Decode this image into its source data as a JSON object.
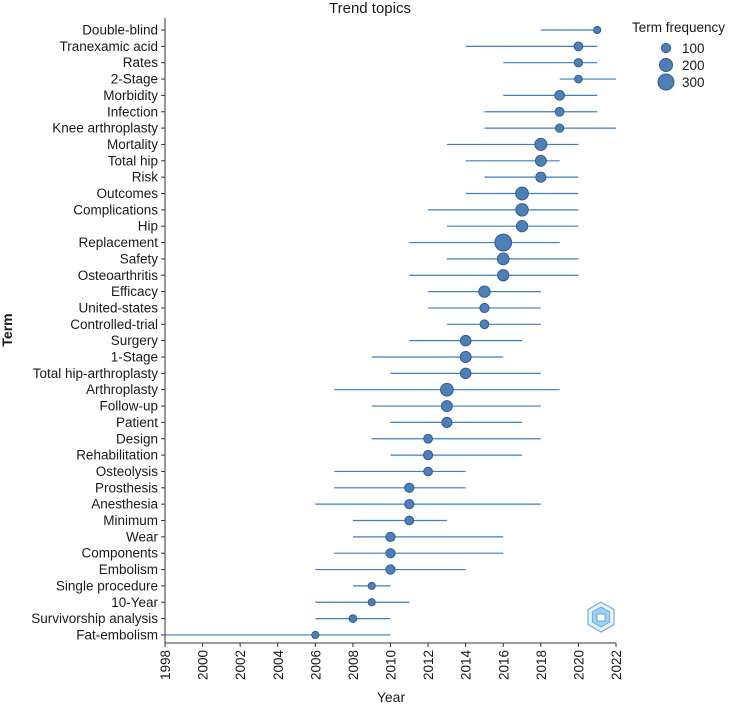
{
  "chart_data": {
    "type": "scatter",
    "title": "Trend topics",
    "xlabel": "Year",
    "ylabel": "Term",
    "xlim": [
      1998,
      2022
    ],
    "xticks": [
      "1998",
      "2000",
      "2002",
      "2004",
      "2006",
      "2008",
      "2010",
      "2012",
      "2014",
      "2016",
      "2018",
      "2020",
      "2022"
    ],
    "legend": {
      "title": "Term frequency",
      "position": "top-right",
      "entries": [
        {
          "label": "100",
          "value": 100
        },
        {
          "label": "200",
          "value": 200
        },
        {
          "label": "300",
          "value": 300
        }
      ]
    },
    "terms": [
      {
        "term": "Double-blind",
        "median": 2021,
        "start": 2018,
        "end": 2021,
        "freq": 60
      },
      {
        "term": "Tranexamic acid",
        "median": 2020,
        "start": 2014,
        "end": 2021,
        "freq": 90
      },
      {
        "term": "Rates",
        "median": 2020,
        "start": 2016,
        "end": 2021,
        "freq": 80
      },
      {
        "term": "2-Stage",
        "median": 2020,
        "start": 2019,
        "end": 2022,
        "freq": 70
      },
      {
        "term": "Morbidity",
        "median": 2019,
        "start": 2016,
        "end": 2021,
        "freq": 110
      },
      {
        "term": "Infection",
        "median": 2019,
        "start": 2015,
        "end": 2021,
        "freq": 90
      },
      {
        "term": "Knee arthroplasty",
        "median": 2019,
        "start": 2015,
        "end": 2022,
        "freq": 80
      },
      {
        "term": "Mortality",
        "median": 2018,
        "start": 2013,
        "end": 2020,
        "freq": 170
      },
      {
        "term": "Total hip",
        "median": 2018,
        "start": 2014,
        "end": 2019,
        "freq": 140
      },
      {
        "term": "Risk",
        "median": 2018,
        "start": 2015,
        "end": 2020,
        "freq": 120
      },
      {
        "term": "Outcomes",
        "median": 2017,
        "start": 2014,
        "end": 2020,
        "freq": 190
      },
      {
        "term": "Complications",
        "median": 2017,
        "start": 2012,
        "end": 2020,
        "freq": 180
      },
      {
        "term": "Hip",
        "median": 2017,
        "start": 2013,
        "end": 2020,
        "freq": 150
      },
      {
        "term": "Replacement",
        "median": 2016,
        "start": 2011,
        "end": 2019,
        "freq": 330
      },
      {
        "term": "Safety",
        "median": 2016,
        "start": 2013,
        "end": 2020,
        "freq": 160
      },
      {
        "term": "Osteoarthritis",
        "median": 2016,
        "start": 2011,
        "end": 2020,
        "freq": 150
      },
      {
        "term": "Efficacy",
        "median": 2015,
        "start": 2012,
        "end": 2018,
        "freq": 150
      },
      {
        "term": "United-states",
        "median": 2015,
        "start": 2012,
        "end": 2018,
        "freq": 100
      },
      {
        "term": "Controlled-trial",
        "median": 2015,
        "start": 2013,
        "end": 2018,
        "freq": 90
      },
      {
        "term": "Surgery",
        "median": 2014,
        "start": 2011,
        "end": 2017,
        "freq": 130
      },
      {
        "term": "1-Stage",
        "median": 2014,
        "start": 2009,
        "end": 2016,
        "freq": 140
      },
      {
        "term": "Total hip-arthroplasty",
        "median": 2014,
        "start": 2010,
        "end": 2018,
        "freq": 130
      },
      {
        "term": "Arthroplasty",
        "median": 2013,
        "start": 2007,
        "end": 2019,
        "freq": 190
      },
      {
        "term": "Follow-up",
        "median": 2013,
        "start": 2009,
        "end": 2018,
        "freq": 140
      },
      {
        "term": "Patient",
        "median": 2013,
        "start": 2010,
        "end": 2017,
        "freq": 120
      },
      {
        "term": "Design",
        "median": 2012,
        "start": 2009,
        "end": 2018,
        "freq": 90
      },
      {
        "term": "Rehabilitation",
        "median": 2012,
        "start": 2010,
        "end": 2017,
        "freq": 100
      },
      {
        "term": "Osteolysis",
        "median": 2012,
        "start": 2007,
        "end": 2014,
        "freq": 90
      },
      {
        "term": "Prosthesis",
        "median": 2011,
        "start": 2007,
        "end": 2014,
        "freq": 100
      },
      {
        "term": "Anesthesia",
        "median": 2011,
        "start": 2006,
        "end": 2018,
        "freq": 100
      },
      {
        "term": "Minimum",
        "median": 2011,
        "start": 2008,
        "end": 2013,
        "freq": 90
      },
      {
        "term": "Wear",
        "median": 2010,
        "start": 2008,
        "end": 2016,
        "freq": 100
      },
      {
        "term": "Components",
        "median": 2010,
        "start": 2007,
        "end": 2016,
        "freq": 100
      },
      {
        "term": "Embolism",
        "median": 2010,
        "start": 2006,
        "end": 2014,
        "freq": 100
      },
      {
        "term": "Single procedure",
        "median": 2009,
        "start": 2008,
        "end": 2010,
        "freq": 60
      },
      {
        "term": "10-Year",
        "median": 2009,
        "start": 2006,
        "end": 2011,
        "freq": 60
      },
      {
        "term": "Survivorship analysis",
        "median": 2008,
        "start": 2006,
        "end": 2010,
        "freq": 70
      },
      {
        "term": "Fat-embolism",
        "median": 2006,
        "start": 1998,
        "end": 2010,
        "freq": 60
      }
    ],
    "colors": {
      "point_fill": "#4f7fb5",
      "point_stroke": "#2f5f95",
      "line": "#3f7fbf",
      "axis": "#333333"
    }
  }
}
